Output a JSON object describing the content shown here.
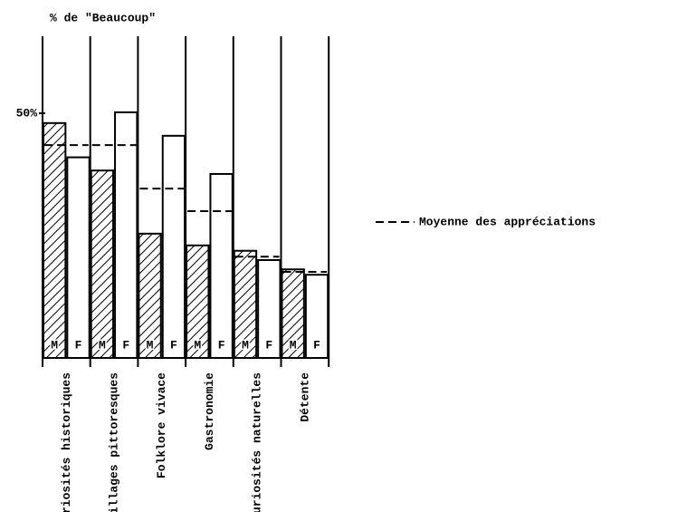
{
  "chart_data": {
    "type": "bar",
    "title": "% de \"Beaucoup\"",
    "categories": [
      "Curiosités historiques",
      "Villages pittoresques",
      "Folklore vivace",
      "Gastronomie",
      "Curiosités naturelles",
      "Détente"
    ],
    "series": [
      {
        "name": "M",
        "color": "#000000",
        "values": [
          48,
          38.3,
          25.4,
          23,
          21.9,
          18.1
        ]
      },
      {
        "name": "F",
        "color": "#ffffff",
        "values": [
          41,
          50.2,
          45.4,
          37.6,
          20,
          17
        ]
      },
      {
        "name": "Moyenne des appréciations",
        "color": "#000000",
        "values": [
          43.5,
          43.5,
          34.6,
          30,
          20.7,
          17.6
        ]
      }
    ],
    "ylim": [
      0,
      65
    ],
    "yticks": [
      {
        "value": 50,
        "label": "50%"
      }
    ]
  }
}
